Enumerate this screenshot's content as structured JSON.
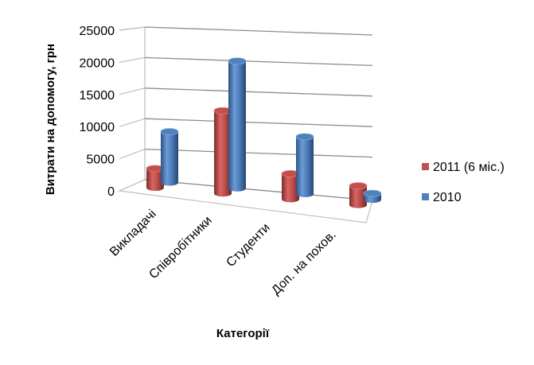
{
  "chart_data": {
    "type": "bar",
    "style": "3d-cylinder",
    "title": "",
    "categories": [
      "Викладачі",
      "Співробітники",
      "Студенти",
      "Доп. на похов."
    ],
    "series": [
      {
        "name": "2011 (6 міс.)",
        "color": "#c0504d",
        "values": [
          3000,
          13000,
          4000,
          3000
        ]
      },
      {
        "name": "2010",
        "color": "#4f81bd",
        "values": [
          8000,
          20000,
          9000,
          1000
        ]
      }
    ],
    "xlabel": "Категорії",
    "ylabel": "Витрати на допомогу, грн",
    "ylim": [
      0,
      25000
    ],
    "yticks": [
      "0",
      "5000",
      "10000",
      "15000",
      "20000",
      "25000"
    ],
    "grid": true,
    "legend_position": "right"
  }
}
